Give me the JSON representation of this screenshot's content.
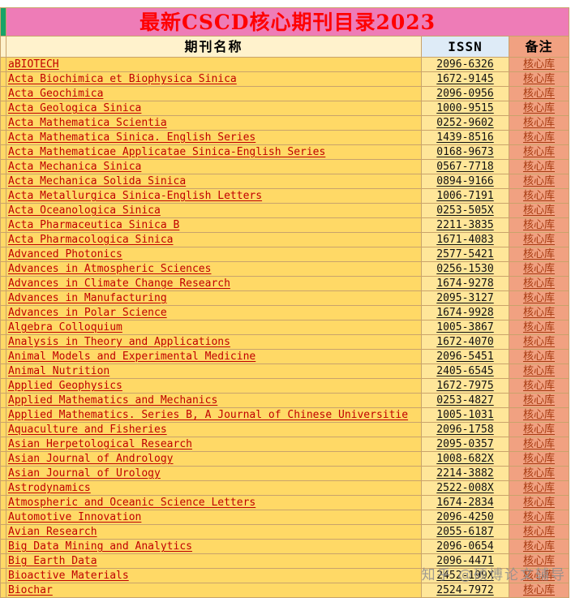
{
  "title": "最新CSCD核心期刊目录2023",
  "header": {
    "name": "期刊名称",
    "issn": "ISSN",
    "note": "备注"
  },
  "watermark": "知乎 @硕博论文辅导",
  "colors": {
    "title_bg": "#ee7cb7",
    "title_text": "#ff0000",
    "name_header_bg": "#fff2cc",
    "issn_header_bg": "#deebf7",
    "note_header_bg": "#f1a181",
    "name_cell_bg": "#ffd966",
    "issn_cell_bg": "#ffe699",
    "note_cell_bg": "#f1a181",
    "name_text": "#c00000",
    "note_text": "#a63a10",
    "grid": "#c9a36b",
    "corner_bg": "#17a368"
  },
  "rows": [
    {
      "name": "aBIOTECH",
      "issn": "2096-6326",
      "note": "核心库"
    },
    {
      "name": "Acta Biochimica et Biophysica Sinica",
      "issn": "1672-9145",
      "note": "核心库"
    },
    {
      "name": "Acta Geochimica",
      "issn": "2096-0956",
      "note": "核心库"
    },
    {
      "name": "Acta Geologica Sinica",
      "issn": "1000-9515",
      "note": "核心库"
    },
    {
      "name": "Acta Mathematica Scientia",
      "issn": "0252-9602",
      "note": "核心库"
    },
    {
      "name": "Acta Mathematica Sinica. English Series",
      "issn": "1439-8516",
      "note": "核心库"
    },
    {
      "name": "Acta Mathematicae Applicatae Sinica-English Series",
      "issn": "0168-9673",
      "note": "核心库"
    },
    {
      "name": "Acta Mechanica Sinica",
      "issn": "0567-7718",
      "note": "核心库"
    },
    {
      "name": "Acta Mechanica Solida Sinica",
      "issn": "0894-9166",
      "note": "核心库"
    },
    {
      "name": "Acta Metallurgica Sinica-English Letters",
      "issn": "1006-7191",
      "note": "核心库"
    },
    {
      "name": "Acta Oceanologica Sinica",
      "issn": "0253-505X",
      "note": "核心库"
    },
    {
      "name": "Acta Pharmaceutica Sinica B",
      "issn": "2211-3835",
      "note": "核心库"
    },
    {
      "name": "Acta Pharmacologica Sinica",
      "issn": "1671-4083",
      "note": "核心库"
    },
    {
      "name": "Advanced Photonics",
      "issn": "2577-5421",
      "note": "核心库"
    },
    {
      "name": "Advances in Atmospheric Sciences",
      "issn": "0256-1530",
      "note": "核心库"
    },
    {
      "name": "Advances in Climate Change Research",
      "issn": "1674-9278",
      "note": "核心库"
    },
    {
      "name": "Advances in Manufacturing",
      "issn": "2095-3127",
      "note": "核心库"
    },
    {
      "name": "Advances in Polar Science",
      "issn": "1674-9928",
      "note": "核心库"
    },
    {
      "name": "Algebra Colloquium",
      "issn": "1005-3867",
      "note": "核心库"
    },
    {
      "name": "Analysis in Theory and Applications",
      "issn": "1672-4070",
      "note": "核心库"
    },
    {
      "name": "Animal Models and Experimental Medicine",
      "issn": "2096-5451",
      "note": "核心库"
    },
    {
      "name": "Animal Nutrition",
      "issn": "2405-6545",
      "note": "核心库"
    },
    {
      "name": "Applied Geophysics",
      "issn": "1672-7975",
      "note": "核心库"
    },
    {
      "name": "Applied Mathematics and Mechanics",
      "issn": "0253-4827",
      "note": "核心库"
    },
    {
      "name": "Applied Mathematics. Series B, A Journal of Chinese Universitie",
      "issn": "1005-1031",
      "note": "核心库"
    },
    {
      "name": "Aquaculture and Fisheries",
      "issn": "2096-1758",
      "note": "核心库"
    },
    {
      "name": "Asian Herpetological Research",
      "issn": "2095-0357",
      "note": "核心库"
    },
    {
      "name": "Asian Journal of Andrology",
      "issn": "1008-682X",
      "note": "核心库"
    },
    {
      "name": "Asian Journal of Urology",
      "issn": "2214-3882",
      "note": "核心库"
    },
    {
      "name": "Astrodynamics",
      "issn": "2522-008X",
      "note": "核心库"
    },
    {
      "name": "Atmospheric and Oceanic Science Letters",
      "issn": "1674-2834",
      "note": "核心库"
    },
    {
      "name": "Automotive Innovation",
      "issn": "2096-4250",
      "note": "核心库"
    },
    {
      "name": "Avian Research",
      "issn": "2055-6187",
      "note": "核心库"
    },
    {
      "name": "Big Data Mining and Analytics",
      "issn": "2096-0654",
      "note": "核心库"
    },
    {
      "name": "Big Earth Data",
      "issn": "2096-4471",
      "note": "核心库"
    },
    {
      "name": "Bioactive Materials",
      "issn": "2452-199X",
      "note": "核心库"
    },
    {
      "name": "Biochar",
      "issn": "2524-7972",
      "note": "核心库"
    }
  ]
}
